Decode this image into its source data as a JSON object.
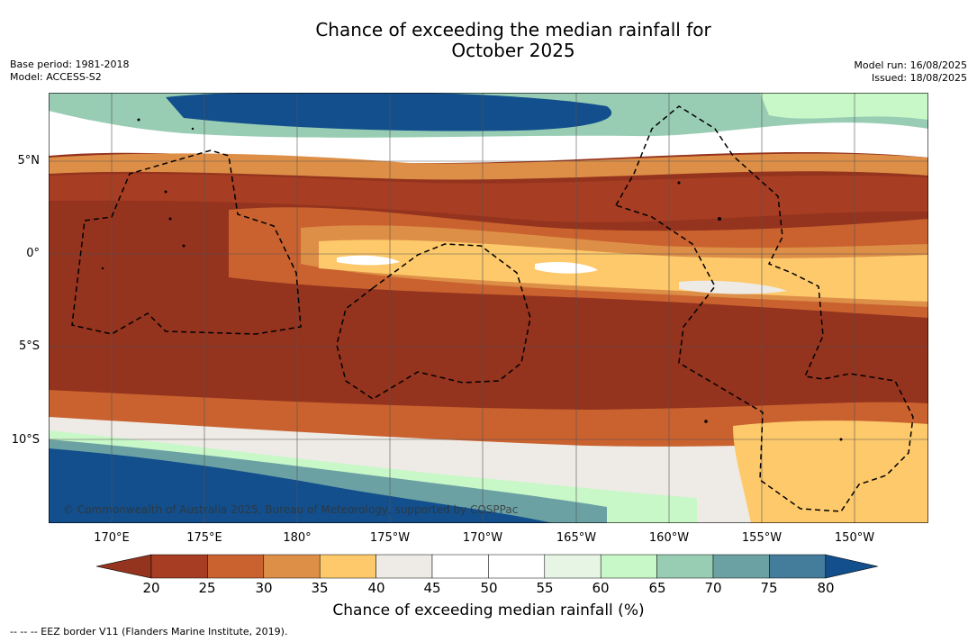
{
  "title": {
    "line1": "Chance of exceeding the median rainfall for",
    "line2": "October 2025"
  },
  "meta_left": {
    "base_period": "Base period: 1981-2018",
    "model": "Model: ACCESS-S2"
  },
  "meta_right": {
    "model_run": "Model run: 16/08/2025",
    "issued": "Issued: 18/08/2025"
  },
  "map": {
    "lon_labels": [
      "170°E",
      "175°E",
      "180°",
      "175°W",
      "170°W",
      "165°W",
      "160°W",
      "155°W",
      "150°W"
    ],
    "lat_labels": [
      "5°N",
      "0°",
      "5°S",
      "10°S"
    ],
    "copyright": "© Commonwealth of Australia 2025, Bureau of Meteorology, supported by COSPPac"
  },
  "colorbar": {
    "ticks": [
      "20",
      "25",
      "30",
      "35",
      "40",
      "45",
      "50",
      "55",
      "60",
      "65",
      "70",
      "75",
      "80"
    ],
    "label": "Chance of exceeding median rainfall (%)",
    "colors": [
      "#a73d23",
      "#c9622f",
      "#de8f47",
      "#fdc96b",
      "#eeebe6",
      "#ffffff",
      "#ffffff",
      "#e6f5e4",
      "#c8f7c8",
      "#98cdb4",
      "#6ca1a3",
      "#447c9c"
    ],
    "under_color": "#94331e",
    "over_color": "#124f8c"
  },
  "legend_note": "-- -- -- EEZ border V11 (Flanders Marine Institute, 2019)."
}
